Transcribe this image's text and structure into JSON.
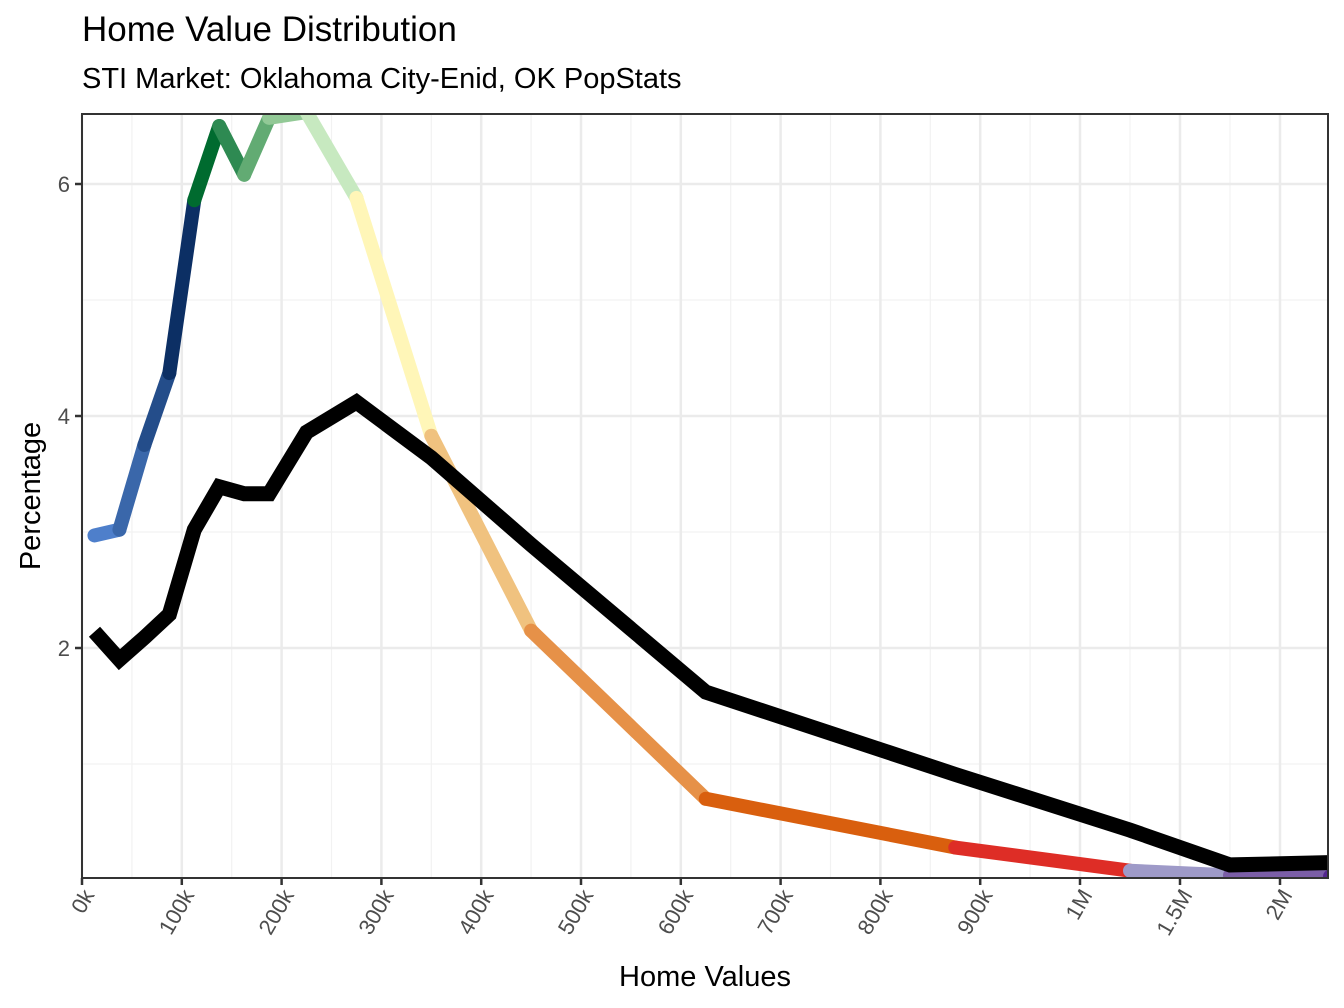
{
  "chart_data": {
    "type": "line",
    "title": "Home Value Distribution",
    "subtitle": "STI Market: Oklahoma City-Enid, OK PopStats",
    "xlabel": "Home Values",
    "ylabel": "Percentage",
    "x_ticks": [
      {
        "value": 0,
        "label": "0k"
      },
      {
        "value": 100000,
        "label": "100k"
      },
      {
        "value": 200000,
        "label": "200k"
      },
      {
        "value": 300000,
        "label": "300k"
      },
      {
        "value": 400000,
        "label": "400k"
      },
      {
        "value": 500000,
        "label": "500k"
      },
      {
        "value": 600000,
        "label": "600k"
      },
      {
        "value": 700000,
        "label": "700k"
      },
      {
        "value": 800000,
        "label": "800k"
      },
      {
        "value": 900000,
        "label": "900k"
      },
      {
        "value": 1000000,
        "label": "1M"
      },
      {
        "value": 1500000,
        "label": "1.5M"
      },
      {
        "value": 2000000,
        "label": "2M"
      }
    ],
    "y_ticks": [
      2,
      4,
      6
    ],
    "ylim": [
      0,
      6.6
    ],
    "grid": true,
    "x": [
      12500,
      37500,
      62500,
      87500,
      112500,
      137500,
      162500,
      187500,
      225000,
      275000,
      350000,
      450000,
      625000,
      875000,
      1250000,
      1750000,
      2250000
    ],
    "series": [
      {
        "style": "multicolor",
        "values": [
          2.97,
          3.02,
          3.75,
          4.37,
          5.86,
          6.5,
          6.08,
          6.57,
          6.62,
          5.88,
          3.83,
          2.15,
          0.7,
          0.28,
          0.08,
          0.04,
          0.03
        ],
        "segment_colors": [
          "#4e7fcb",
          "#3a67aa",
          "#244d8a",
          "#0c2f64",
          "#006b2f",
          "#2e8a52",
          "#62ab73",
          "#92c996",
          "#c7e9c0",
          "#fff6b8",
          "#f0c27f",
          "#e69148",
          "#d95f0e",
          "#de2d26",
          "#9e9ac8",
          "#7b5ea7",
          "#54278f"
        ]
      },
      {
        "color": "#000000",
        "values": [
          2.14,
          1.9,
          2.09,
          2.29,
          3.02,
          3.39,
          3.33,
          3.33,
          3.86,
          4.12,
          3.64,
          2.89,
          1.62,
          0.91,
          0.43,
          0.13,
          0.15
        ]
      }
    ]
  }
}
